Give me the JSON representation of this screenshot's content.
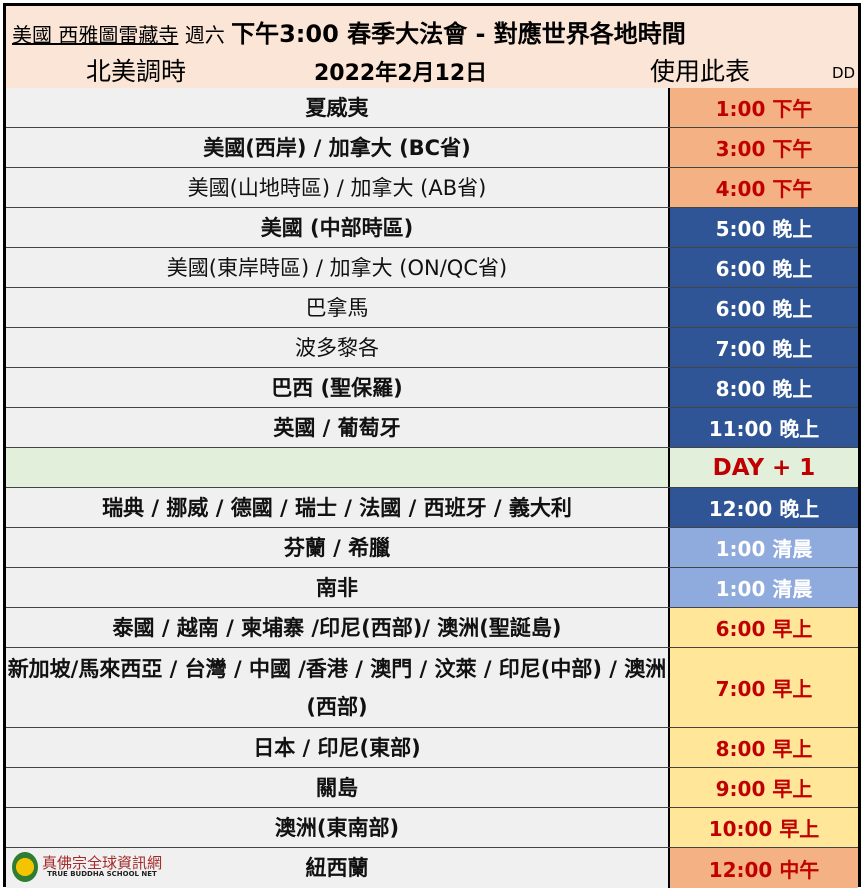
{
  "header": {
    "temple": "美國  西雅圖雷藏寺",
    "weekday": "週六",
    "title": "下午3:00 春季大法會 - 對應世界各地時間",
    "left_note": "北美調時",
    "date": "2022年2月12日",
    "right_note": "使用此表",
    "corner": "DD"
  },
  "colors": {
    "orange": "#f4b183",
    "navy": "#2f5597",
    "lightblue": "#8faadc",
    "yellow": "#ffe699",
    "green": "#e2efda",
    "red": "#c00000"
  },
  "rows": [
    {
      "place": "夏威夷",
      "time": "1:00 下午",
      "style": "orange",
      "bold": true
    },
    {
      "place": "美國(西岸)  / 加拿大 (BC省)",
      "time": "3:00 下午",
      "style": "orange",
      "bold": true
    },
    {
      "place": "美國(山地時區)  / 加拿大 (AB省)",
      "time": "4:00 下午",
      "style": "orange",
      "bold": false
    },
    {
      "place": "美國 (中部時區)",
      "time": "5:00 晚上",
      "style": "navy",
      "bold": true
    },
    {
      "place": "美國(東岸時區)  / 加拿大 (ON/QC省)",
      "time": "6:00 晚上",
      "style": "navy",
      "bold": false
    },
    {
      "place": "巴拿馬",
      "time": "6:00 晚上",
      "style": "navy",
      "bold": false
    },
    {
      "place": "波多黎各",
      "time": "7:00 晚上",
      "style": "navy",
      "bold": false
    },
    {
      "place": "巴西 (聖保羅)",
      "time": "8:00 晚上",
      "style": "navy",
      "bold": true
    },
    {
      "place": "英國 / 葡萄牙",
      "time": "11:00 晚上",
      "style": "navy",
      "bold": true
    },
    {
      "place": "",
      "time": "DAY + 1",
      "style": "green",
      "bold": true
    },
    {
      "place": "瑞典 / 挪威 / 德國 / 瑞士 / 法國 / 西班牙 / 義大利",
      "time": "12:00 晚上",
      "style": "navy",
      "bold": true
    },
    {
      "place": "芬蘭 / 希臘",
      "time": "1:00 清晨",
      "style": "lightblue",
      "bold": true
    },
    {
      "place": "南非",
      "time": "1:00 清晨",
      "style": "lightblue",
      "bold": true
    },
    {
      "place": "泰國 / 越南 / 柬埔寨 /印尼(西部)/ 澳洲(聖誕島)",
      "time": "6:00 早上",
      "style": "yellow",
      "bold": true
    },
    {
      "place": "新加坡/馬來西亞 / 台灣 / 中國 /香港 / 澳門 / 汶萊 / 印尼(中部) / 澳洲(西部)",
      "time": "7:00 早上",
      "style": "yellow",
      "bold": true,
      "tall": true
    },
    {
      "place": "日本 /  印尼(東部)",
      "time": "8:00 早上",
      "style": "yellow",
      "bold": true
    },
    {
      "place": "關島",
      "time": "9:00 早上",
      "style": "yellow",
      "bold": true
    },
    {
      "place": "澳洲(東南部)",
      "time": "10:00 早上",
      "style": "yellow",
      "bold": true
    },
    {
      "place": "紐西蘭",
      "time": "12:00 中午",
      "style": "orange",
      "bold": true
    }
  ],
  "logo": {
    "name": "真佛宗全球資訊網",
    "sub": "TRUE BUDDHA SCHOOL NET"
  }
}
